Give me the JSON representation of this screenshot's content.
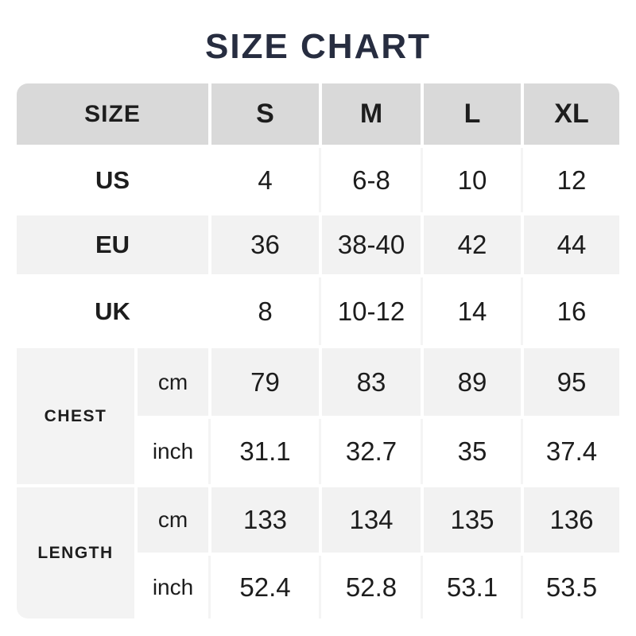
{
  "title": "SIZE CHART",
  "colors": {
    "title_text": "#272d40",
    "header_bg": "#d9d9d9",
    "alt_row_bg": "#f2f2f2",
    "measure_label_bg": "#f3f3f3",
    "cell_text": "#1d1d1d",
    "page_bg": "#ffffff"
  },
  "chart_data": {
    "type": "table",
    "title": "SIZE CHART",
    "header": {
      "size_label": "SIZE",
      "columns": [
        "S",
        "M",
        "L",
        "XL"
      ]
    },
    "size_rows": [
      {
        "label": "US",
        "values": [
          "4",
          "6-8",
          "10",
          "12"
        ]
      },
      {
        "label": "EU",
        "values": [
          "36",
          "38-40",
          "42",
          "44"
        ]
      },
      {
        "label": "UK",
        "values": [
          "8",
          "10-12",
          "14",
          "16"
        ]
      }
    ],
    "measure_rows": [
      {
        "label": "CHEST",
        "units": [
          {
            "unit": "cm",
            "values": [
              "79",
              "83",
              "89",
              "95"
            ]
          },
          {
            "unit": "inch",
            "values": [
              "31.1",
              "32.7",
              "35",
              "37.4"
            ]
          }
        ]
      },
      {
        "label": "LENGTH",
        "units": [
          {
            "unit": "cm",
            "values": [
              "133",
              "134",
              "135",
              "136"
            ]
          },
          {
            "unit": "inch",
            "values": [
              "52.4",
              "52.8",
              "53.1",
              "53.5"
            ]
          }
        ]
      }
    ]
  }
}
